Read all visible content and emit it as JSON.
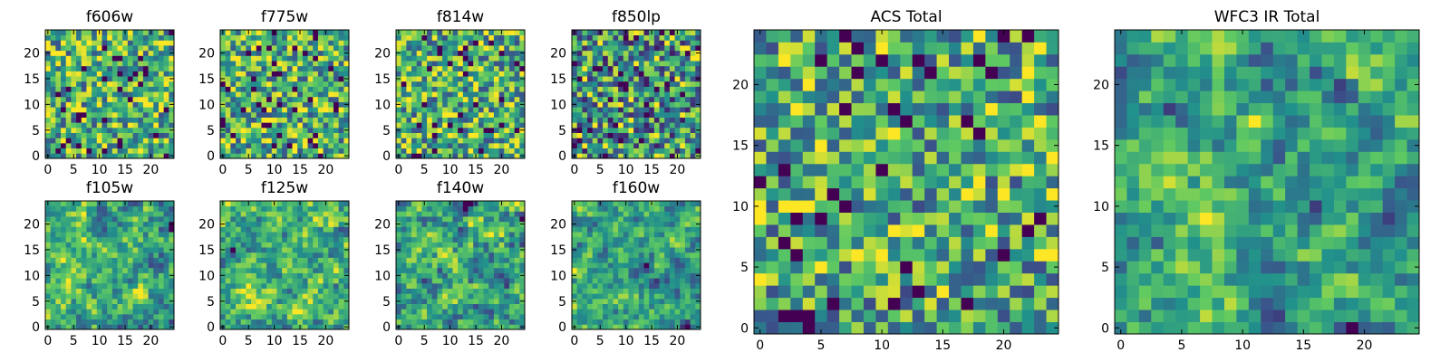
{
  "figure": {
    "colormap": [
      "#440154",
      "#3b528b",
      "#21918c",
      "#5ec962",
      "#fde725"
    ]
  },
  "chart_data": [
    {
      "type": "heatmap",
      "title": "f606w",
      "grid": [
        25,
        25
      ],
      "seed": 11,
      "smooth": 0,
      "bias": 0.62,
      "spread": 0.85,
      "xlim": [
        -0.5,
        24.5
      ],
      "ylim": [
        -0.5,
        24.5
      ],
      "xticks": [
        "0",
        "5",
        "10",
        "15",
        "20"
      ],
      "yticks": [
        "0",
        "5",
        "10",
        "15",
        "20"
      ]
    },
    {
      "type": "heatmap",
      "title": "f775w",
      "grid": [
        25,
        25
      ],
      "seed": 23,
      "smooth": 0,
      "bias": 0.63,
      "spread": 0.85,
      "xlim": [
        -0.5,
        24.5
      ],
      "ylim": [
        -0.5,
        24.5
      ],
      "xticks": [
        "0",
        "5",
        "10",
        "15",
        "20"
      ],
      "yticks": [
        "0",
        "5",
        "10",
        "15",
        "20"
      ]
    },
    {
      "type": "heatmap",
      "title": "f814w",
      "grid": [
        25,
        25
      ],
      "seed": 37,
      "smooth": 0,
      "bias": 0.62,
      "spread": 0.85,
      "xlim": [
        -0.5,
        24.5
      ],
      "ylim": [
        -0.5,
        24.5
      ],
      "xticks": [
        "0",
        "5",
        "10",
        "15",
        "20"
      ],
      "yticks": [
        "0",
        "5",
        "10",
        "15",
        "20"
      ]
    },
    {
      "type": "heatmap",
      "title": "f850lp",
      "grid": [
        25,
        25
      ],
      "seed": 41,
      "smooth": 0,
      "bias": 0.5,
      "spread": 0.95,
      "xlim": [
        -0.5,
        24.5
      ],
      "ylim": [
        -0.5,
        24.5
      ],
      "xticks": [
        "0",
        "5",
        "10",
        "15",
        "20"
      ],
      "yticks": [
        "0",
        "5",
        "10",
        "15",
        "20"
      ]
    },
    {
      "type": "heatmap",
      "title": "f105w",
      "grid": [
        25,
        25
      ],
      "seed": 53,
      "smooth": 1,
      "bias": 0.6,
      "spread": 0.9,
      "xlim": [
        -0.5,
        24.5
      ],
      "ylim": [
        -0.5,
        24.5
      ],
      "xticks": [
        "0",
        "5",
        "10",
        "15",
        "20"
      ],
      "yticks": [
        "0",
        "5",
        "10",
        "15",
        "20"
      ]
    },
    {
      "type": "heatmap",
      "title": "f125w",
      "grid": [
        25,
        25
      ],
      "seed": 67,
      "smooth": 1,
      "bias": 0.62,
      "spread": 0.9,
      "xlim": [
        -0.5,
        24.5
      ],
      "ylim": [
        -0.5,
        24.5
      ],
      "xticks": [
        "0",
        "5",
        "10",
        "15",
        "20"
      ],
      "yticks": [
        "0",
        "5",
        "10",
        "15",
        "20"
      ]
    },
    {
      "type": "heatmap",
      "title": "f140w",
      "grid": [
        25,
        25
      ],
      "seed": 71,
      "smooth": 1,
      "bias": 0.6,
      "spread": 0.95,
      "xlim": [
        -0.5,
        24.5
      ],
      "ylim": [
        -0.5,
        24.5
      ],
      "xticks": [
        "0",
        "5",
        "10",
        "15",
        "20"
      ],
      "yticks": [
        "0",
        "5",
        "10",
        "15",
        "20"
      ]
    },
    {
      "type": "heatmap",
      "title": "f160w",
      "grid": [
        25,
        25
      ],
      "seed": 83,
      "smooth": 1,
      "bias": 0.55,
      "spread": 0.95,
      "xlim": [
        -0.5,
        24.5
      ],
      "ylim": [
        -0.5,
        24.5
      ],
      "xticks": [
        "0",
        "5",
        "10",
        "15",
        "20"
      ],
      "yticks": [
        "0",
        "5",
        "10",
        "15",
        "20"
      ]
    },
    {
      "type": "heatmap",
      "title": "ACS Total",
      "grid": [
        25,
        25
      ],
      "seed": 97,
      "smooth": 0,
      "bias": 0.58,
      "spread": 0.8,
      "xlim": [
        -0.5,
        24.5
      ],
      "ylim": [
        -0.5,
        24.5
      ],
      "xticks": [
        "0",
        "5",
        "10",
        "15",
        "20"
      ],
      "yticks": [
        "0",
        "5",
        "10",
        "15",
        "20"
      ]
    },
    {
      "type": "heatmap",
      "title": "WFC3 IR Total",
      "grid": [
        25,
        25
      ],
      "seed": 101,
      "smooth": 1,
      "bias": 0.55,
      "spread": 0.85,
      "xlim": [
        -0.5,
        24.5
      ],
      "ylim": [
        -0.5,
        24.5
      ],
      "xticks": [
        "0",
        "5",
        "10",
        "15",
        "20"
      ],
      "yticks": [
        "0",
        "5",
        "10",
        "15",
        "20"
      ]
    }
  ]
}
